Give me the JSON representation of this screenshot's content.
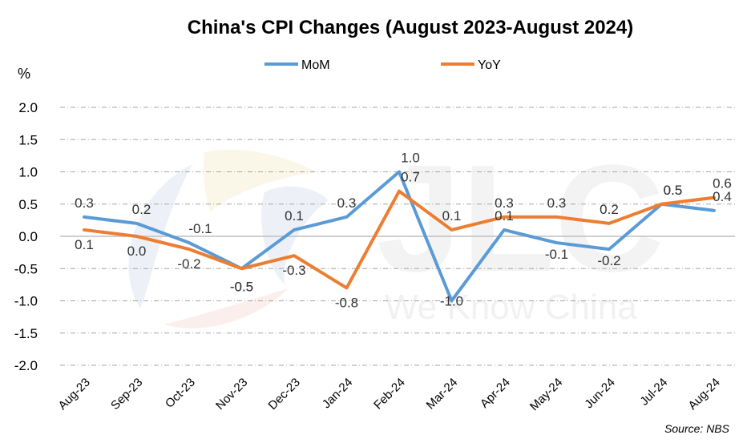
{
  "chart_data": {
    "type": "line",
    "title": "China's CPI Changes (August 2023-August 2024)",
    "ylabel": "%",
    "ylim": [
      -2.0,
      2.0
    ],
    "yticks": [
      "2.0",
      "1.5",
      "1.0",
      "0.5",
      "0.0",
      "-0.5",
      "-1.0",
      "-1.5",
      "-2.0"
    ],
    "ytick_values": [
      2.0,
      1.5,
      1.0,
      0.5,
      0.0,
      -0.5,
      -1.0,
      -1.5,
      -2.0
    ],
    "categories": [
      "Aug-23",
      "Sep-23",
      "Oct-23",
      "Nov-23",
      "Dec-23",
      "Jan-24",
      "Feb-24",
      "Mar-24",
      "Apr-24",
      "May-24",
      "Jun-24",
      "Jul-24",
      "Aug-24"
    ],
    "series": [
      {
        "name": "MoM",
        "color": "#5b9bd5",
        "values": [
          0.3,
          0.2,
          -0.1,
          -0.5,
          0.1,
          0.3,
          1.0,
          -1.0,
          0.1,
          -0.1,
          -0.2,
          0.5,
          0.4
        ],
        "labels": [
          "0.3",
          "0.2",
          "-0.1",
          "-0.5",
          "0.1",
          "0.3",
          "1.0",
          "-1.0",
          "0.1",
          "-0.1",
          "-0.2",
          "0.5",
          "0.4"
        ]
      },
      {
        "name": "YoY",
        "color": "#ed7d31",
        "values": [
          0.1,
          0.0,
          -0.2,
          -0.5,
          -0.3,
          -0.8,
          0.7,
          0.1,
          0.3,
          0.3,
          0.2,
          0.5,
          0.6
        ],
        "labels": [
          "0.1",
          "0.0",
          "-0.2",
          "-0.5",
          "-0.3",
          "-0.8",
          "0.7",
          "0.1",
          "0.3",
          "0.3",
          "0.2",
          "0.5",
          "0.6"
        ]
      }
    ],
    "grid": true,
    "legend": "top-center",
    "source": "Source: NBS"
  },
  "watermark": {
    "logo_text": "JLC",
    "tagline": "We Know China"
  }
}
